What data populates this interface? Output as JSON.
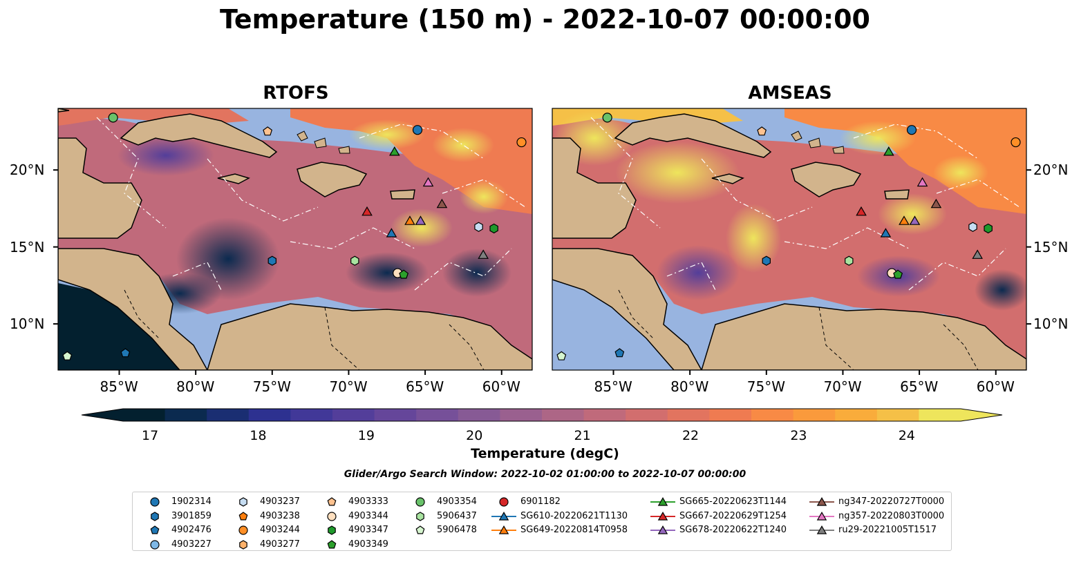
{
  "title": "Temperature (150 m) - 2022-10-07 00:00:00",
  "panels": [
    {
      "title": "RTOFS",
      "id": "rtofs"
    },
    {
      "title": "AMSEAS",
      "id": "amseas"
    }
  ],
  "axes": {
    "x_ticks": [
      "85°W",
      "80°W",
      "75°W",
      "70°W",
      "65°W",
      "60°W"
    ],
    "x_values": [
      -85,
      -80,
      -75,
      -70,
      -65,
      -60
    ],
    "y_ticks": [
      "20°N",
      "15°N",
      "10°N"
    ],
    "y_values": [
      20,
      15,
      10
    ],
    "lon_range": [
      -89,
      -58
    ],
    "lat_range": [
      7,
      24
    ]
  },
  "colorbar": {
    "label": "Temperature (degC)",
    "ticks": [
      "17",
      "18",
      "19",
      "20",
      "21",
      "22",
      "23",
      "24"
    ],
    "tick_values": [
      17,
      18,
      19,
      20,
      21,
      22,
      23,
      24
    ],
    "range": [
      16.75,
      24.5
    ],
    "colors": [
      "#03202f",
      "#0b2a4f",
      "#1a2e72",
      "#2d3190",
      "#413898",
      "#533e9a",
      "#65469a",
      "#765099",
      "#875a95",
      "#9a608f",
      "#ad6686",
      "#c06a7b",
      "#d26e6e",
      "#e2745f",
      "#ef7b51",
      "#f88a45",
      "#fa9a3c",
      "#f9ac3b",
      "#f5c047",
      "#eee55c"
    ]
  },
  "search_window": "Glider/Argo Search Window: 2022-10-02 01:00:00 to 2022-10-07 00:00:00",
  "legend": {
    "columns": [
      [
        {
          "label": "1902314",
          "marker": "circle",
          "color": "#1f77b4"
        },
        {
          "label": "3901859",
          "marker": "hexagon",
          "color": "#1f77b4"
        },
        {
          "label": "4902476",
          "marker": "pentagon",
          "color": "#1f77b4"
        },
        {
          "label": "4903227",
          "marker": "circle",
          "color": "#7fb8e6"
        }
      ],
      [
        {
          "label": "4903237",
          "marker": "hexagon",
          "color": "#c6ddf2"
        },
        {
          "label": "4903238",
          "marker": "pentagon",
          "color": "#ff7f0e"
        },
        {
          "label": "4903244",
          "marker": "circle",
          "color": "#ff8f26"
        },
        {
          "label": "4903277",
          "marker": "hexagon",
          "color": "#ffb26b"
        }
      ],
      [
        {
          "label": "4903333",
          "marker": "pentagon",
          "color": "#ffc28f"
        },
        {
          "label": "4903344",
          "marker": "circle",
          "color": "#ffe0c0"
        },
        {
          "label": "4903347",
          "marker": "hexagon",
          "color": "#1f9a2c"
        },
        {
          "label": "4903349",
          "marker": "pentagon",
          "color": "#2ca02c"
        }
      ],
      [
        {
          "label": "4903354",
          "marker": "circle",
          "color": "#69c26a"
        },
        {
          "label": "5906437",
          "marker": "hexagon",
          "color": "#a9e3a0"
        },
        {
          "label": "5906478",
          "marker": "pentagon",
          "color": "#d6f5cf"
        }
      ],
      [
        {
          "label": "6901182",
          "marker": "circle",
          "color": "#d62728"
        },
        {
          "label": "SG610-20220621T1130",
          "marker": "triangle",
          "color": "#1f77b4"
        },
        {
          "label": "SG649-20220814T0958",
          "marker": "triangle",
          "color": "#ff7f0e"
        }
      ],
      [
        {
          "label": "SG665-20220623T1144",
          "marker": "triangle",
          "color": "#2ca02c"
        },
        {
          "label": "SG667-20220629T1254",
          "marker": "triangle",
          "color": "#d62728"
        },
        {
          "label": "SG678-20220622T1240",
          "marker": "triangle",
          "color": "#9467bd"
        }
      ],
      [
        {
          "label": "ng347-20220727T0000",
          "marker": "triangle",
          "color": "#8c564b"
        },
        {
          "label": "ng357-20220803T0000",
          "marker": "triangle",
          "color": "#e377c2"
        },
        {
          "label": "ru29-20221005T1517",
          "marker": "triangle",
          "color": "#7f7f7f"
        }
      ]
    ]
  },
  "observations": [
    {
      "label": "4903354",
      "lon": -85.4,
      "lat": 23.4
    },
    {
      "label": "4903333",
      "lon": -75.3,
      "lat": 22.5
    },
    {
      "label": "1902314",
      "lon": -65.5,
      "lat": 22.6
    },
    {
      "label": "4903244",
      "lon": -58.7,
      "lat": 21.8
    },
    {
      "label": "SG665-20220623T1144",
      "lon": -67.0,
      "lat": 21.2
    },
    {
      "label": "ng357-20220803T0000",
      "lon": -64.8,
      "lat": 19.2
    },
    {
      "label": "ng347-20220727T0000",
      "lon": -63.9,
      "lat": 17.8
    },
    {
      "label": "SG667-20220629T1254",
      "lon": -68.8,
      "lat": 17.3
    },
    {
      "label": "SG649-20220814T0958",
      "lon": -66.0,
      "lat": 16.7
    },
    {
      "label": "SG678-20220622T1240",
      "lon": -65.3,
      "lat": 16.7
    },
    {
      "label": "SG610-20220621T1130",
      "lon": -67.2,
      "lat": 15.9
    },
    {
      "label": "4903237",
      "lon": -61.5,
      "lat": 16.3
    },
    {
      "label": "4903347",
      "lon": -60.5,
      "lat": 16.2
    },
    {
      "label": "ru29-20221005T1517",
      "lon": -61.2,
      "lat": 14.5
    },
    {
      "label": "3901859",
      "lon": -75.0,
      "lat": 14.1
    },
    {
      "label": "5906437",
      "lon": -69.6,
      "lat": 14.1
    },
    {
      "label": "4903344",
      "lon": -66.8,
      "lat": 13.3
    },
    {
      "label": "4903349",
      "lon": -66.4,
      "lat": 13.2
    },
    {
      "label": "4902476",
      "lon": -84.6,
      "lat": 8.1
    },
    {
      "label": "5906478",
      "lon": -88.4,
      "lat": 7.9
    }
  ]
}
